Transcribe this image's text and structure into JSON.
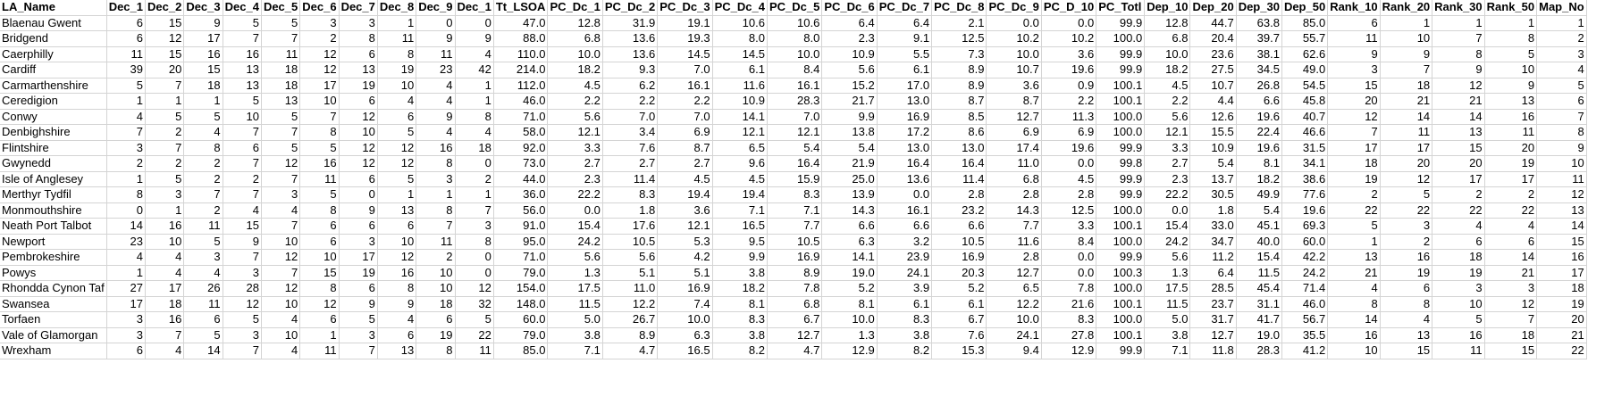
{
  "sheet": {
    "columns": [
      "LA_Name",
      "Dec_1",
      "Dec_2",
      "Dec_3",
      "Dec_4",
      "Dec_5",
      "Dec_6",
      "Dec_7",
      "Dec_8",
      "Dec_9",
      "Dec_1",
      "Tt_LSOA",
      "PC_Dc_1",
      "PC_Dc_2",
      "PC_Dc_3",
      "PC_Dc_4",
      "PC_Dc_5",
      "PC_Dc_6",
      "PC_Dc_7",
      "PC_Dc_8",
      "PC_Dc_9",
      "PC_D_10",
      "PC_Totl",
      "Dep_10",
      "Dep_20",
      "Dep_30",
      "Dep_50",
      "Rank_10",
      "Rank_20",
      "Rank_30",
      "Rank_50",
      "Map_No"
    ],
    "rows": [
      [
        "Blaenau Gwent",
        "6",
        "15",
        "9",
        "5",
        "5",
        "3",
        "3",
        "1",
        "0",
        "0",
        "47.0",
        "12.8",
        "31.9",
        "19.1",
        "10.6",
        "10.6",
        "6.4",
        "6.4",
        "2.1",
        "0.0",
        "0.0",
        "99.9",
        "12.8",
        "44.7",
        "63.8",
        "85.0",
        "6",
        "1",
        "1",
        "1",
        "1"
      ],
      [
        "Bridgend",
        "6",
        "12",
        "17",
        "7",
        "7",
        "2",
        "8",
        "11",
        "9",
        "9",
        "88.0",
        "6.8",
        "13.6",
        "19.3",
        "8.0",
        "8.0",
        "2.3",
        "9.1",
        "12.5",
        "10.2",
        "10.2",
        "100.0",
        "6.8",
        "20.4",
        "39.7",
        "55.7",
        "11",
        "10",
        "7",
        "8",
        "2"
      ],
      [
        "Caerphilly",
        "11",
        "15",
        "16",
        "16",
        "11",
        "12",
        "6",
        "8",
        "11",
        "4",
        "110.0",
        "10.0",
        "13.6",
        "14.5",
        "14.5",
        "10.0",
        "10.9",
        "5.5",
        "7.3",
        "10.0",
        "3.6",
        "99.9",
        "10.0",
        "23.6",
        "38.1",
        "62.6",
        "9",
        "9",
        "8",
        "5",
        "3"
      ],
      [
        "Cardiff",
        "39",
        "20",
        "15",
        "13",
        "18",
        "12",
        "13",
        "19",
        "23",
        "42",
        "214.0",
        "18.2",
        "9.3",
        "7.0",
        "6.1",
        "8.4",
        "5.6",
        "6.1",
        "8.9",
        "10.7",
        "19.6",
        "99.9",
        "18.2",
        "27.5",
        "34.5",
        "49.0",
        "3",
        "7",
        "9",
        "10",
        "4"
      ],
      [
        "Carmarthenshire",
        "5",
        "7",
        "18",
        "13",
        "18",
        "17",
        "19",
        "10",
        "4",
        "1",
        "112.0",
        "4.5",
        "6.2",
        "16.1",
        "11.6",
        "16.1",
        "15.2",
        "17.0",
        "8.9",
        "3.6",
        "0.9",
        "100.1",
        "4.5",
        "10.7",
        "26.8",
        "54.5",
        "15",
        "18",
        "12",
        "9",
        "5"
      ],
      [
        "Ceredigion",
        "1",
        "1",
        "1",
        "5",
        "13",
        "10",
        "6",
        "4",
        "4",
        "1",
        "46.0",
        "2.2",
        "2.2",
        "2.2",
        "10.9",
        "28.3",
        "21.7",
        "13.0",
        "8.7",
        "8.7",
        "2.2",
        "100.1",
        "2.2",
        "4.4",
        "6.6",
        "45.8",
        "20",
        "21",
        "21",
        "13",
        "6"
      ],
      [
        "Conwy",
        "4",
        "5",
        "5",
        "10",
        "5",
        "7",
        "12",
        "6",
        "9",
        "8",
        "71.0",
        "5.6",
        "7.0",
        "7.0",
        "14.1",
        "7.0",
        "9.9",
        "16.9",
        "8.5",
        "12.7",
        "11.3",
        "100.0",
        "5.6",
        "12.6",
        "19.6",
        "40.7",
        "12",
        "14",
        "14",
        "16",
        "7"
      ],
      [
        "Denbighshire",
        "7",
        "2",
        "4",
        "7",
        "7",
        "8",
        "10",
        "5",
        "4",
        "4",
        "58.0",
        "12.1",
        "3.4",
        "6.9",
        "12.1",
        "12.1",
        "13.8",
        "17.2",
        "8.6",
        "6.9",
        "6.9",
        "100.0",
        "12.1",
        "15.5",
        "22.4",
        "46.6",
        "7",
        "11",
        "13",
        "11",
        "8"
      ],
      [
        "Flintshire",
        "3",
        "7",
        "8",
        "6",
        "5",
        "5",
        "12",
        "12",
        "16",
        "18",
        "92.0",
        "3.3",
        "7.6",
        "8.7",
        "6.5",
        "5.4",
        "5.4",
        "13.0",
        "13.0",
        "17.4",
        "19.6",
        "99.9",
        "3.3",
        "10.9",
        "19.6",
        "31.5",
        "17",
        "17",
        "15",
        "20",
        "9"
      ],
      [
        "Gwynedd",
        "2",
        "2",
        "2",
        "7",
        "12",
        "16",
        "12",
        "12",
        "8",
        "0",
        "73.0",
        "2.7",
        "2.7",
        "2.7",
        "9.6",
        "16.4",
        "21.9",
        "16.4",
        "16.4",
        "11.0",
        "0.0",
        "99.8",
        "2.7",
        "5.4",
        "8.1",
        "34.1",
        "18",
        "20",
        "20",
        "19",
        "10"
      ],
      [
        "Isle of Anglesey",
        "1",
        "5",
        "2",
        "2",
        "7",
        "11",
        "6",
        "5",
        "3",
        "2",
        "44.0",
        "2.3",
        "11.4",
        "4.5",
        "4.5",
        "15.9",
        "25.0",
        "13.6",
        "11.4",
        "6.8",
        "4.5",
        "99.9",
        "2.3",
        "13.7",
        "18.2",
        "38.6",
        "19",
        "12",
        "17",
        "17",
        "11"
      ],
      [
        "Merthyr Tydfil",
        "8",
        "3",
        "7",
        "7",
        "3",
        "5",
        "0",
        "1",
        "1",
        "1",
        "36.0",
        "22.2",
        "8.3",
        "19.4",
        "19.4",
        "8.3",
        "13.9",
        "0.0",
        "2.8",
        "2.8",
        "2.8",
        "99.9",
        "22.2",
        "30.5",
        "49.9",
        "77.6",
        "2",
        "5",
        "2",
        "2",
        "12"
      ],
      [
        "Monmouthshire",
        "0",
        "1",
        "2",
        "4",
        "4",
        "8",
        "9",
        "13",
        "8",
        "7",
        "56.0",
        "0.0",
        "1.8",
        "3.6",
        "7.1",
        "7.1",
        "14.3",
        "16.1",
        "23.2",
        "14.3",
        "12.5",
        "100.0",
        "0.0",
        "1.8",
        "5.4",
        "19.6",
        "22",
        "22",
        "22",
        "22",
        "13"
      ],
      [
        "Neath Port Talbot",
        "14",
        "16",
        "11",
        "15",
        "7",
        "6",
        "6",
        "6",
        "7",
        "3",
        "91.0",
        "15.4",
        "17.6",
        "12.1",
        "16.5",
        "7.7",
        "6.6",
        "6.6",
        "6.6",
        "7.7",
        "3.3",
        "100.1",
        "15.4",
        "33.0",
        "45.1",
        "69.3",
        "5",
        "3",
        "4",
        "4",
        "14"
      ],
      [
        "Newport",
        "23",
        "10",
        "5",
        "9",
        "10",
        "6",
        "3",
        "10",
        "11",
        "8",
        "95.0",
        "24.2",
        "10.5",
        "5.3",
        "9.5",
        "10.5",
        "6.3",
        "3.2",
        "10.5",
        "11.6",
        "8.4",
        "100.0",
        "24.2",
        "34.7",
        "40.0",
        "60.0",
        "1",
        "2",
        "6",
        "6",
        "15"
      ],
      [
        "Pembrokeshire",
        "4",
        "4",
        "3",
        "7",
        "12",
        "10",
        "17",
        "12",
        "2",
        "0",
        "71.0",
        "5.6",
        "5.6",
        "4.2",
        "9.9",
        "16.9",
        "14.1",
        "23.9",
        "16.9",
        "2.8",
        "0.0",
        "99.9",
        "5.6",
        "11.2",
        "15.4",
        "42.2",
        "13",
        "16",
        "18",
        "14",
        "16"
      ],
      [
        "Powys",
        "1",
        "4",
        "4",
        "3",
        "7",
        "15",
        "19",
        "16",
        "10",
        "0",
        "79.0",
        "1.3",
        "5.1",
        "5.1",
        "3.8",
        "8.9",
        "19.0",
        "24.1",
        "20.3",
        "12.7",
        "0.0",
        "100.3",
        "1.3",
        "6.4",
        "11.5",
        "24.2",
        "21",
        "19",
        "19",
        "21",
        "17"
      ],
      [
        "Rhondda Cynon Taf",
        "27",
        "17",
        "26",
        "28",
        "12",
        "8",
        "6",
        "8",
        "10",
        "12",
        "154.0",
        "17.5",
        "11.0",
        "16.9",
        "18.2",
        "7.8",
        "5.2",
        "3.9",
        "5.2",
        "6.5",
        "7.8",
        "100.0",
        "17.5",
        "28.5",
        "45.4",
        "71.4",
        "4",
        "6",
        "3",
        "3",
        "18"
      ],
      [
        "Swansea",
        "17",
        "18",
        "11",
        "12",
        "10",
        "12",
        "9",
        "9",
        "18",
        "32",
        "148.0",
        "11.5",
        "12.2",
        "7.4",
        "8.1",
        "6.8",
        "8.1",
        "6.1",
        "6.1",
        "12.2",
        "21.6",
        "100.1",
        "11.5",
        "23.7",
        "31.1",
        "46.0",
        "8",
        "8",
        "10",
        "12",
        "19"
      ],
      [
        "Torfaen",
        "3",
        "16",
        "6",
        "5",
        "4",
        "6",
        "5",
        "4",
        "6",
        "5",
        "60.0",
        "5.0",
        "26.7",
        "10.0",
        "8.3",
        "6.7",
        "10.0",
        "8.3",
        "6.7",
        "10.0",
        "8.3",
        "100.0",
        "5.0",
        "31.7",
        "41.7",
        "56.7",
        "14",
        "4",
        "5",
        "7",
        "20"
      ],
      [
        "Vale of Glamorgan",
        "3",
        "7",
        "5",
        "3",
        "10",
        "1",
        "3",
        "6",
        "19",
        "22",
        "79.0",
        "3.8",
        "8.9",
        "6.3",
        "3.8",
        "12.7",
        "1.3",
        "3.8",
        "7.6",
        "24.1",
        "27.8",
        "100.1",
        "3.8",
        "12.7",
        "19.0",
        "35.5",
        "16",
        "13",
        "16",
        "18",
        "21"
      ],
      [
        "Wrexham",
        "6",
        "4",
        "14",
        "7",
        "4",
        "11",
        "7",
        "13",
        "8",
        "11",
        "85.0",
        "7.1",
        "4.7",
        "16.5",
        "8.2",
        "4.7",
        "12.9",
        "8.2",
        "15.3",
        "9.4",
        "12.9",
        "99.9",
        "7.1",
        "11.8",
        "28.3",
        "41.2",
        "10",
        "15",
        "11",
        "15",
        "22"
      ]
    ]
  }
}
